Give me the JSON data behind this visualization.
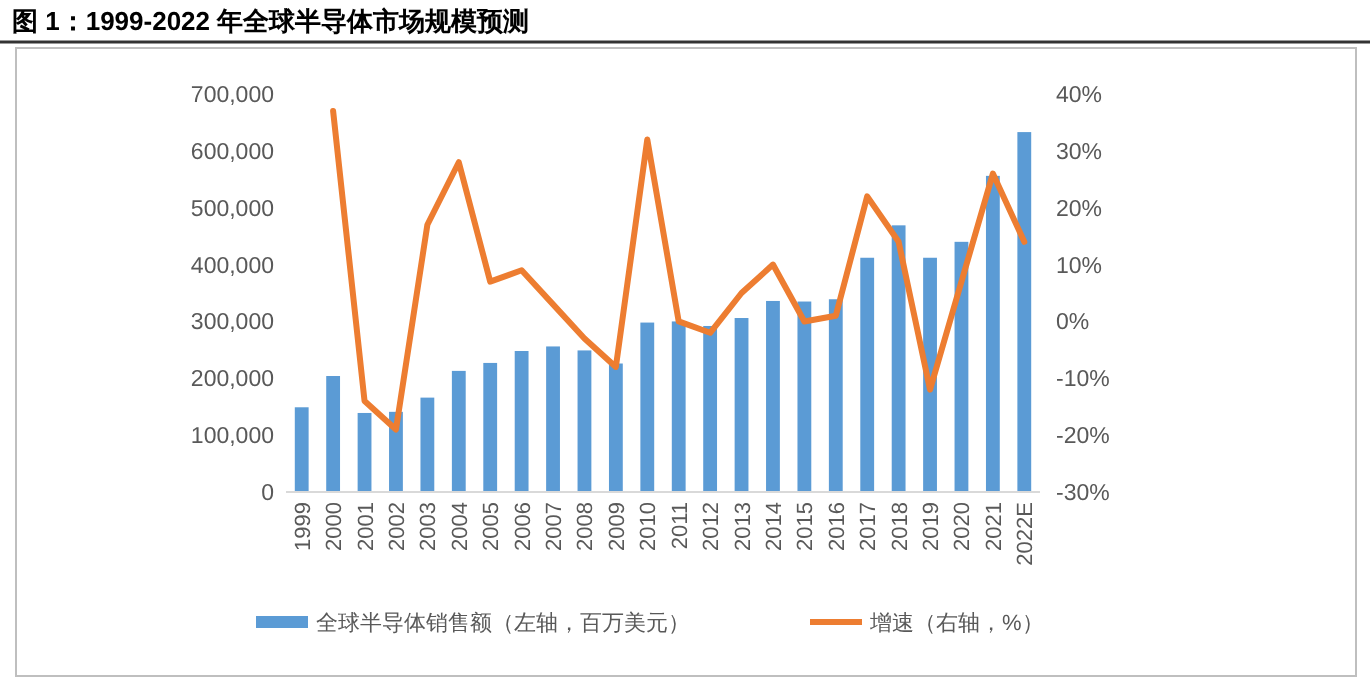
{
  "chart_data": {
    "type": "bar",
    "title": "图 1：1999-2022 年全球半导体市场规模预测",
    "categories": [
      "1999",
      "2000",
      "2001",
      "2002",
      "2003",
      "2004",
      "2005",
      "2006",
      "2007",
      "2008",
      "2009",
      "2010",
      "2011",
      "2012",
      "2013",
      "2014",
      "2015",
      "2016",
      "2017",
      "2018",
      "2019",
      "2020",
      "2021",
      "2022E"
    ],
    "series": [
      {
        "name": "全球半导体销售额（左轴，百万美元）",
        "color": "#5b9bd5",
        "values": [
          149000,
          204000,
          139000,
          141000,
          166000,
          213000,
          227000,
          248000,
          256000,
          249000,
          226000,
          298000,
          300000,
          292000,
          306000,
          336000,
          335000,
          339000,
          412000,
          469000,
          412000,
          440000,
          556000,
          633000
        ]
      },
      {
        "name": "增速（右轴，%）",
        "type": "line",
        "axis": "y2",
        "color": "#ed7d31",
        "values": [
          null,
          37,
          -14,
          -19,
          17,
          28,
          7,
          9,
          3,
          -3,
          -8,
          32,
          0,
          -2,
          5,
          10,
          0,
          1,
          22,
          14,
          -12,
          7,
          26,
          14
        ]
      }
    ],
    "ylim": [
      0,
      700000
    ],
    "yticks": [
      {
        "value": 0,
        "label": "0"
      },
      {
        "value": 100000,
        "label": "100,000"
      },
      {
        "value": 200000,
        "label": "200,000"
      },
      {
        "value": 300000,
        "label": "300,000"
      },
      {
        "value": 400000,
        "label": "400,000"
      },
      {
        "value": 500000,
        "label": "500,000"
      },
      {
        "value": 600000,
        "label": "600,000"
      },
      {
        "value": 700000,
        "label": "700,000"
      }
    ],
    "y2lim": [
      -30,
      40
    ],
    "y2ticks": [
      {
        "value": -30,
        "label": "-30%"
      },
      {
        "value": -20,
        "label": "-20%"
      },
      {
        "value": -10,
        "label": "-10%"
      },
      {
        "value": 0,
        "label": "0%"
      },
      {
        "value": 10,
        "label": "10%"
      },
      {
        "value": 20,
        "label": "20%"
      },
      {
        "value": 30,
        "label": "30%"
      },
      {
        "value": 40,
        "label": "40%"
      }
    ],
    "legend": "bottom",
    "grid": false
  }
}
